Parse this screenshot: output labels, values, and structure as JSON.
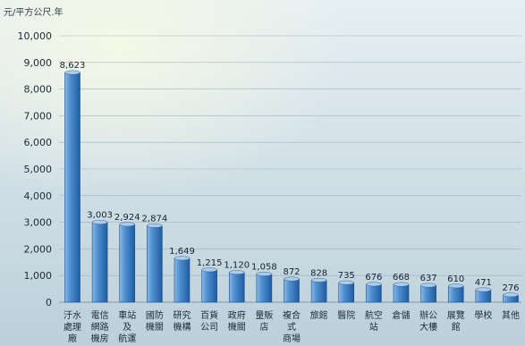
{
  "chart_data": {
    "type": "bar",
    "unit_label": "元/平方公尺.年",
    "ylim": [
      0,
      10000
    ],
    "yticks": [
      "0",
      "1,000",
      "2,000",
      "3,000",
      "4,000",
      "5,000",
      "6,000",
      "7,000",
      "8,000",
      "9,000",
      "10,000"
    ],
    "grid": true,
    "categories": [
      "汙水處理廠",
      "電信網路機房",
      "車站及航運",
      "國防機關",
      "研究機構",
      "百貨公司",
      "政府機關",
      "量販店",
      "複合式商場",
      "旅館",
      "醫院",
      "航空站",
      "倉儲",
      "辦公大樓",
      "展覽館",
      "學校",
      "其他"
    ],
    "category_lines": [
      [
        "汙水",
        "處理",
        "廠"
      ],
      [
        "電信",
        "網路",
        "機房"
      ],
      [
        "車站",
        "及",
        "航運"
      ],
      [
        "國防",
        "機關"
      ],
      [
        "研究",
        "機構"
      ],
      [
        "百貨",
        "公司"
      ],
      [
        "政府",
        "機關"
      ],
      [
        "量販",
        "店"
      ],
      [
        "複合",
        "式",
        "商場"
      ],
      [
        "旅館"
      ],
      [
        "醫院"
      ],
      [
        "航空",
        "站"
      ],
      [
        "倉儲"
      ],
      [
        "辦公",
        "大樓"
      ],
      [
        "展覽",
        "館"
      ],
      [
        "學校"
      ],
      [
        "其他"
      ]
    ],
    "values": [
      8623,
      3003,
      2924,
      2874,
      1649,
      1215,
      1120,
      1058,
      872,
      828,
      735,
      676,
      668,
      637,
      610,
      471,
      276
    ],
    "value_labels": [
      "8,623",
      "3,003",
      "2,924",
      "2,874",
      "1,649",
      "1,215",
      "1,120",
      "1,058",
      "872",
      "828",
      "735",
      "676",
      "668",
      "637",
      "610",
      "471",
      "276"
    ],
    "bar_color": "#3f7fc2"
  }
}
